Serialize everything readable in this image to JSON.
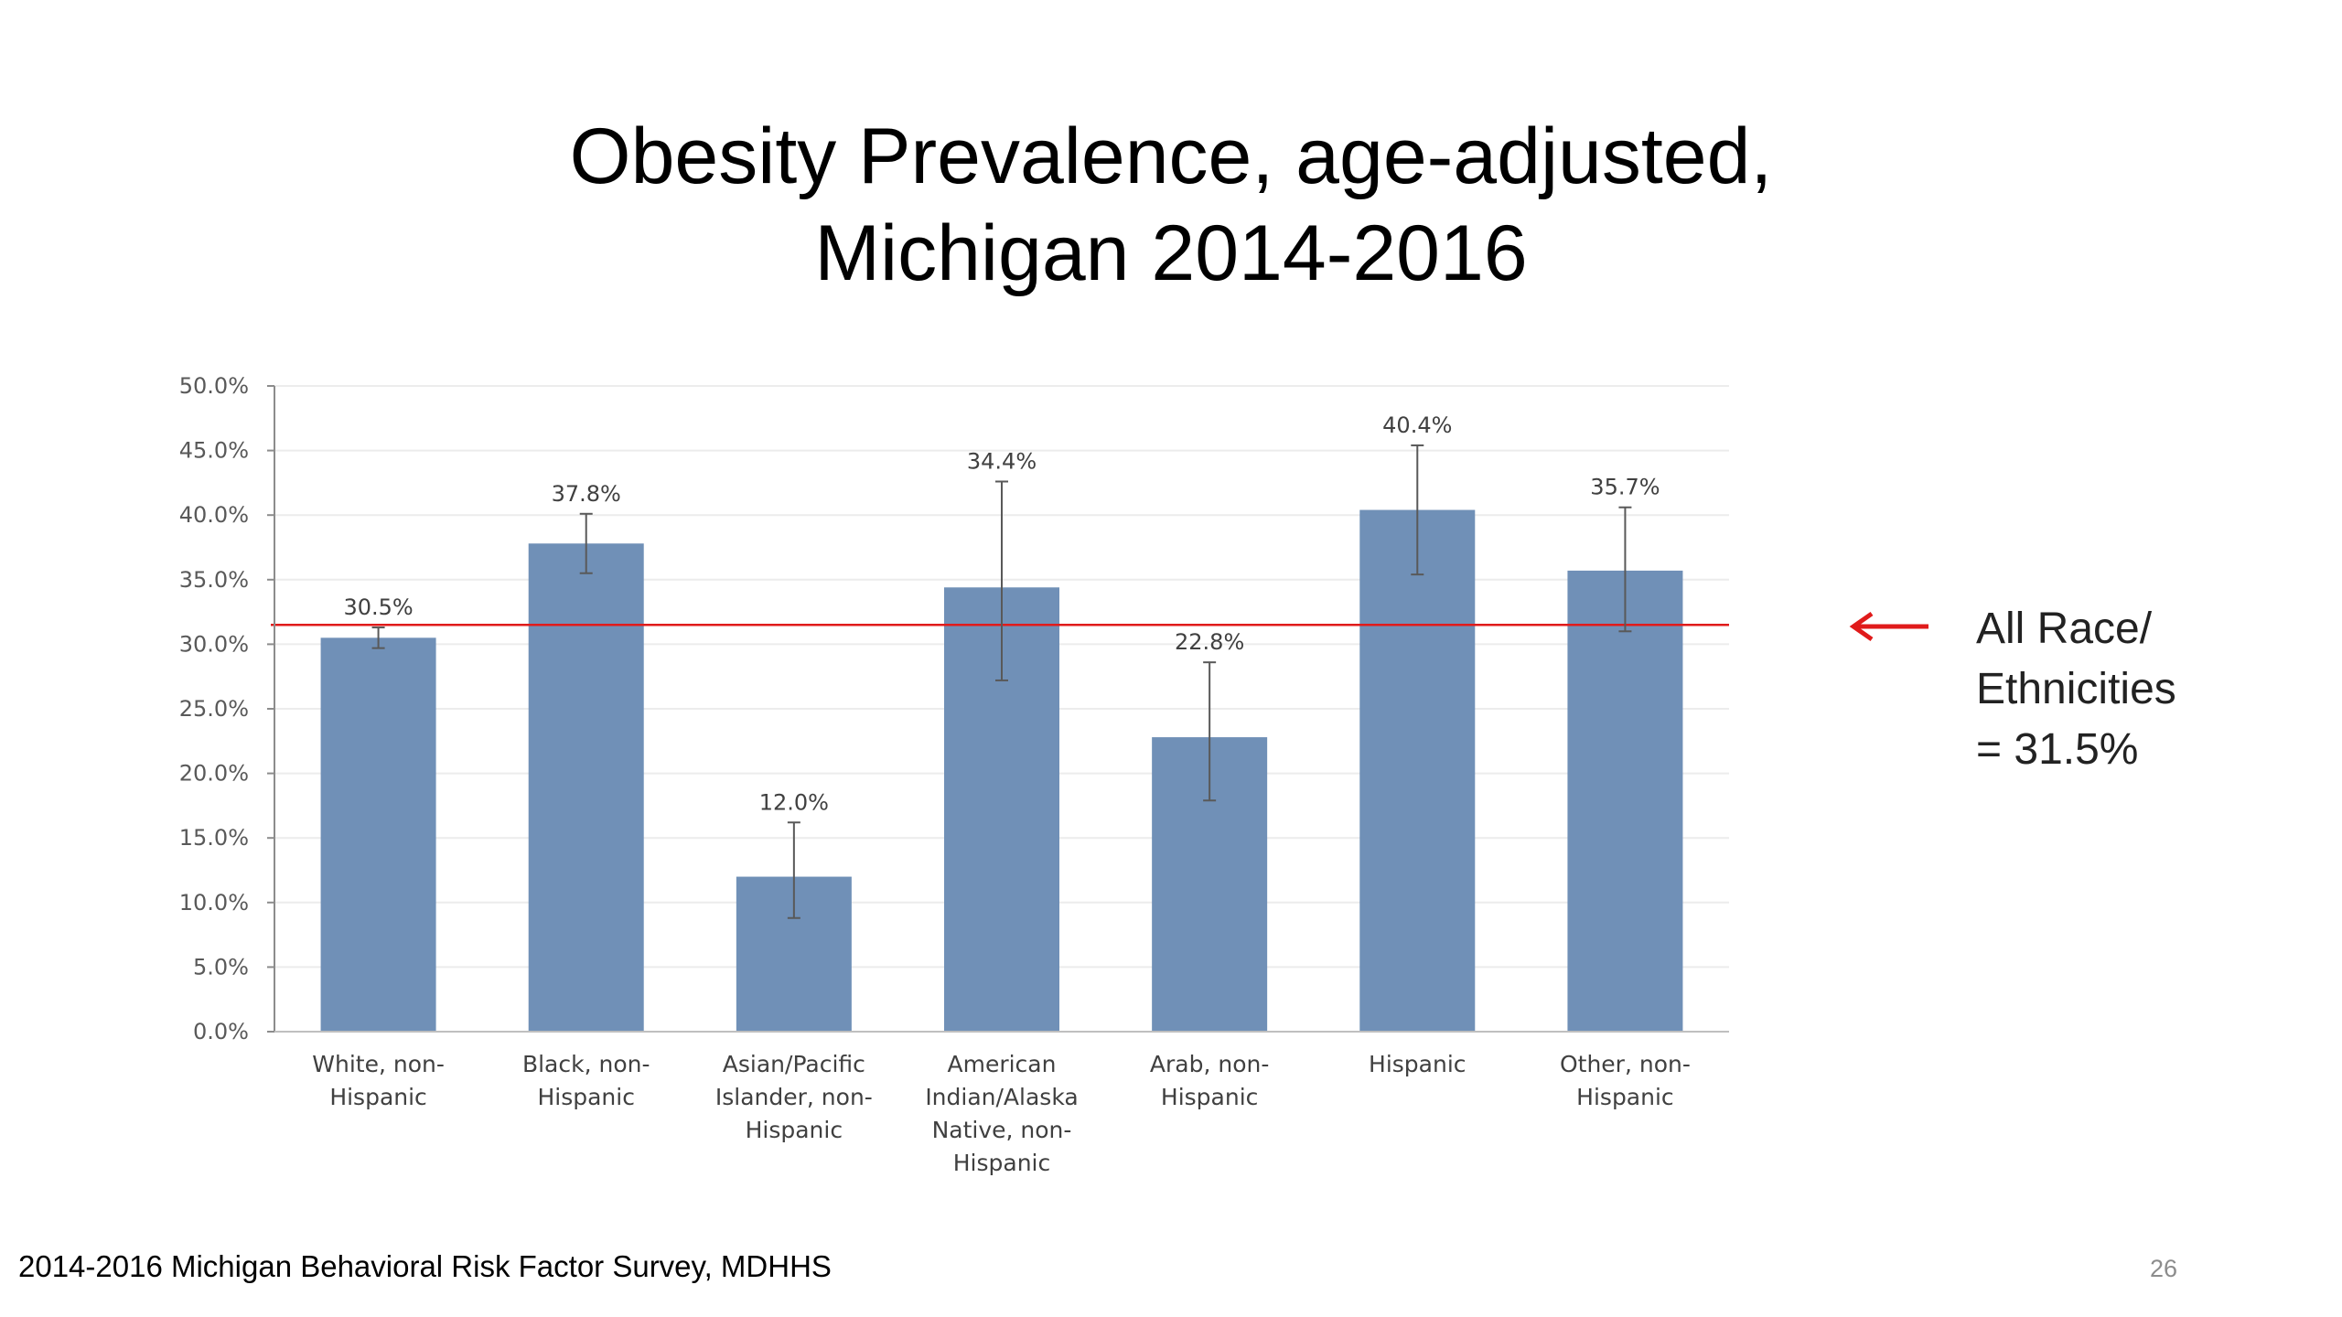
{
  "slide": {
    "title_line1": "Obesity Prevalence, age-adjusted,",
    "title_line2": "Michigan 2014-2016",
    "note_line1": "All Race/",
    "note_line2": "Ethnicities",
    "note_line3": "= 31.5%",
    "source": "2014-2016 Michigan Behavioral Risk Factor Survey, MDHHS",
    "page_number": "26"
  },
  "chart_data": {
    "type": "bar",
    "categories": [
      [
        "White, non-",
        "Hispanic"
      ],
      [
        "Black, non-",
        "Hispanic"
      ],
      [
        "Asian/Pacific",
        "Islander, non-",
        "Hispanic"
      ],
      [
        "American",
        "Indian/Alaska",
        "Native, non-",
        "Hispanic"
      ],
      [
        "Arab, non-",
        "Hispanic"
      ],
      [
        "Hispanic"
      ],
      [
        "Other, non-",
        "Hispanic"
      ]
    ],
    "values": [
      30.5,
      37.8,
      12.0,
      34.4,
      22.8,
      40.4,
      35.7
    ],
    "value_labels": [
      "30.5%",
      "37.8%",
      "12.0%",
      "34.4%",
      "22.8%",
      "40.4%",
      "35.7%"
    ],
    "error_low": [
      29.7,
      35.5,
      8.8,
      27.2,
      17.9,
      35.4,
      31.0
    ],
    "error_high": [
      31.3,
      40.1,
      16.2,
      42.6,
      28.6,
      45.4,
      40.6
    ],
    "reference_line": 31.5,
    "ylim": [
      0,
      50
    ],
    "yticks": [
      0,
      5,
      10,
      15,
      20,
      25,
      30,
      35,
      40,
      45,
      50
    ],
    "ytick_labels": [
      "0.0%",
      "5.0%",
      "10.0%",
      "15.0%",
      "20.0%",
      "25.0%",
      "30.0%",
      "35.0%",
      "40.0%",
      "45.0%",
      "50.0%"
    ],
    "grid": true,
    "bar_color": "#7090b7",
    "reference_line_color": "#e01b1b",
    "error_bar_color": "#595959"
  }
}
